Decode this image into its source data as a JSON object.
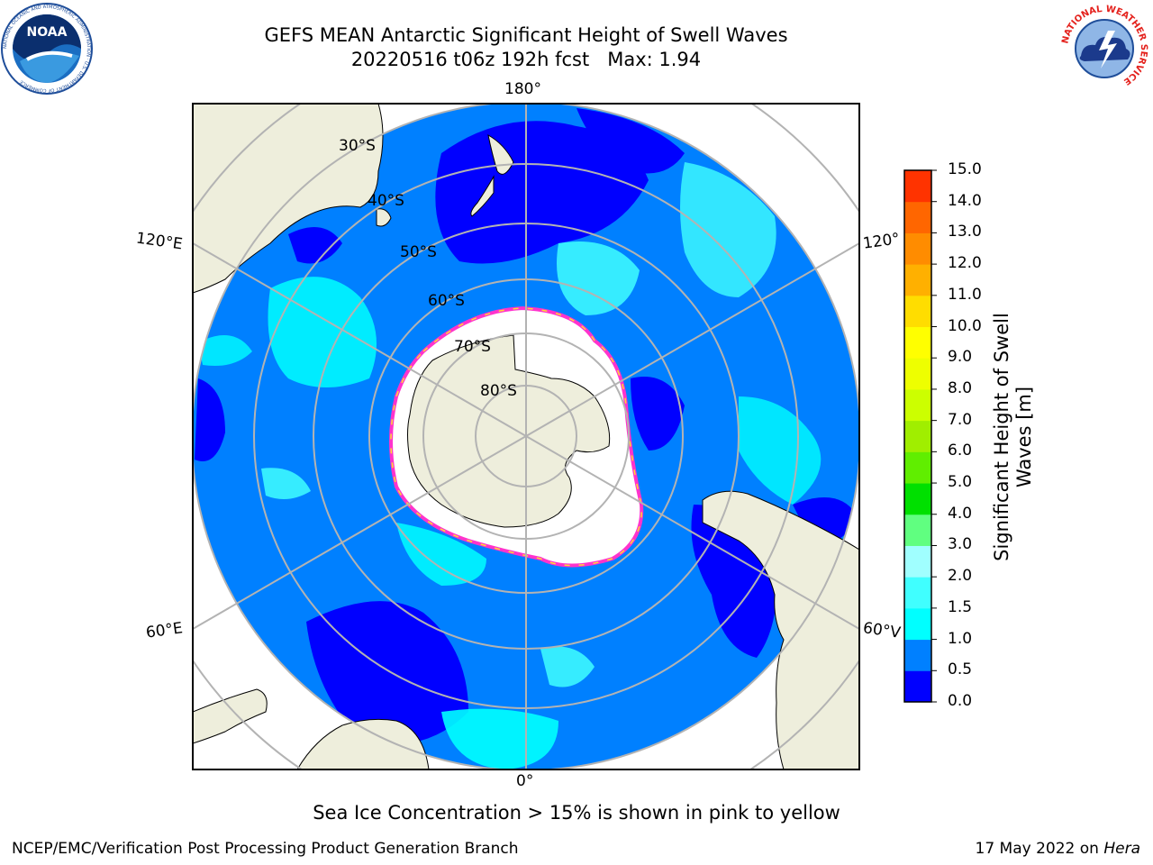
{
  "header": {
    "title": "GEFS MEAN Antarctic Significant Height of Swell Waves",
    "subtitle": "20220516 t06z 192h fcst   Max: 1.94"
  },
  "logos": {
    "noaa_text": "NOAA",
    "noaa_ring_text": "NATIONAL OCEANIC AND ATMOSPHERIC ADMINISTRATION · U.S. DEPARTMENT OF COMMERCE",
    "nws_ring_text": "NATIONAL WEATHER SERVICE"
  },
  "map": {
    "projection": "south-polar-stereographic",
    "lon_labels": {
      "top": "180°",
      "bottom": "0°",
      "upper_left": "120°E",
      "upper_right": "120°",
      "lower_left": "60°E",
      "lower_right": "60°V"
    },
    "lat_labels": {
      "lat30": "30°S",
      "lat40": "40°S",
      "lat50": "50°S",
      "lat60": "60°S",
      "lat70": "70°S",
      "lat80": "80°S"
    },
    "colors": {
      "land": "#eeeedc",
      "ice_interior": "#ffffff",
      "ice_edge": [
        "#ff33cc",
        "#ff66dd",
        "#ffdd33"
      ],
      "graticule": "#b3b3b3"
    }
  },
  "colorbar": {
    "label": "Significant Height of Swell Waves [m]",
    "ticks": [
      "0.0",
      "0.5",
      "1.0",
      "1.5",
      "2.0",
      "3.0",
      "4.0",
      "5.0",
      "6.0",
      "7.0",
      "8.0",
      "9.0",
      "10.0",
      "11.0",
      "12.0",
      "13.0",
      "14.0",
      "15.0"
    ],
    "colors": [
      "#0000ff",
      "#0080ff",
      "#00ffff",
      "#40ffff",
      "#a0ffff",
      "#60ff80",
      "#00e000",
      "#60ee00",
      "#a0ee00",
      "#ccff00",
      "#eeff00",
      "#ffff00",
      "#ffdd00",
      "#ffb000",
      "#ff8c00",
      "#ff6600",
      "#ff3300",
      "#ff0000"
    ]
  },
  "footer": {
    "note": "Sea Ice Concentration > 15% is shown in pink to yellow",
    "credit": "NCEP/EMC/Verification Post Processing Product Generation Branch",
    "date": "17 May 2022 on",
    "machine": "Hera"
  }
}
